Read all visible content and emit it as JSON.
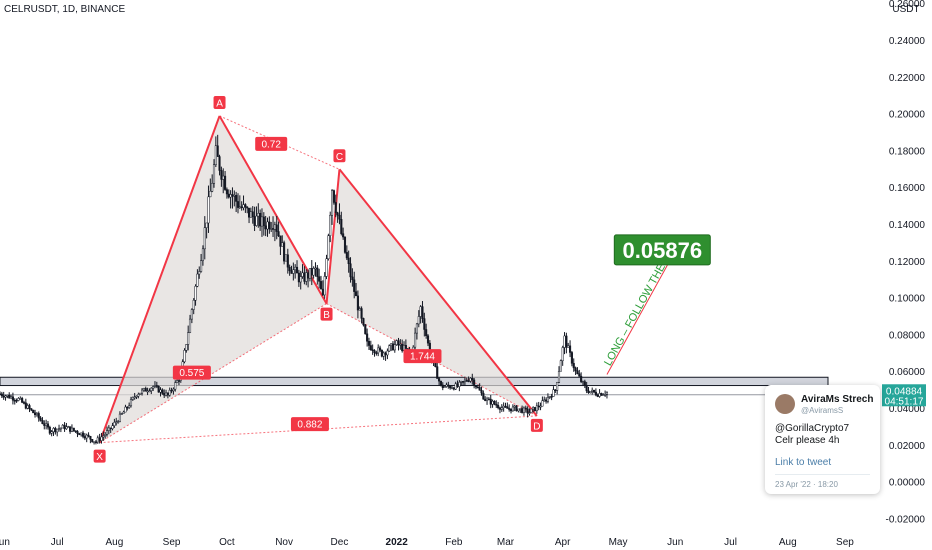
{
  "symbol_label": "CELRUSDT, 1D, BINANCE",
  "chart_data": {
    "type": "candlestick-pattern",
    "currency_label": "USDT",
    "y_ticks": [
      0.26,
      0.24,
      0.22,
      0.2,
      0.18,
      0.16,
      0.14,
      0.12,
      0.1,
      0.08,
      0.06,
      0.04,
      0.02,
      0.0,
      -0.02
    ],
    "y_tick_labels": [
      "0.26000",
      "0.24000",
      "0.22000",
      "0.20000",
      "0.18000",
      "0.16000",
      "0.14000",
      "0.12000",
      "0.10000",
      "0.08000",
      "0.06000",
      "0.04000",
      "0.02000",
      "0.00000",
      "-0.02000"
    ],
    "ylim": [
      -0.026,
      0.262
    ],
    "xlim": [
      "2021-05-31",
      "2022-09-20"
    ],
    "x_ticks": [
      {
        "label": "Jun",
        "date": "2021-06-01",
        "bold": false
      },
      {
        "label": "Jul",
        "date": "2021-07-01",
        "bold": false
      },
      {
        "label": "Aug",
        "date": "2021-08-01",
        "bold": false
      },
      {
        "label": "Sep",
        "date": "2021-09-01",
        "bold": false
      },
      {
        "label": "Oct",
        "date": "2021-10-01",
        "bold": false
      },
      {
        "label": "Nov",
        "date": "2021-11-01",
        "bold": false
      },
      {
        "label": "Dec",
        "date": "2021-12-01",
        "bold": false
      },
      {
        "label": "2022",
        "date": "2022-01-01",
        "bold": true
      },
      {
        "label": "Feb",
        "date": "2022-02-01",
        "bold": false
      },
      {
        "label": "Mar",
        "date": "2022-03-01",
        "bold": false
      },
      {
        "label": "Apr",
        "date": "2022-04-01",
        "bold": false
      },
      {
        "label": "May",
        "date": "2022-05-01",
        "bold": false
      },
      {
        "label": "Jun",
        "date": "2022-06-01",
        "bold": false
      },
      {
        "label": "Jul",
        "date": "2022-07-01",
        "bold": false
      },
      {
        "label": "Aug",
        "date": "2022-08-01",
        "bold": false
      },
      {
        "label": "Sep",
        "date": "2022-09-01",
        "bold": false
      }
    ],
    "price_path": [
      [
        "2021-05-31",
        0.048
      ],
      [
        "2021-06-10",
        0.045
      ],
      [
        "2021-06-20",
        0.036
      ],
      [
        "2021-06-27",
        0.028
      ],
      [
        "2021-07-05",
        0.03
      ],
      [
        "2021-07-15",
        0.026
      ],
      [
        "2021-07-22",
        0.022
      ],
      [
        "2021-07-29",
        0.028
      ],
      [
        "2021-08-06",
        0.038
      ],
      [
        "2021-08-13",
        0.048
      ],
      [
        "2021-08-22",
        0.052
      ],
      [
        "2021-08-30",
        0.047
      ],
      [
        "2021-09-06",
        0.058
      ],
      [
        "2021-09-13",
        0.1
      ],
      [
        "2021-09-18",
        0.13
      ],
      [
        "2021-09-25",
        0.178
      ],
      [
        "2021-10-01",
        0.16
      ],
      [
        "2021-10-08",
        0.15
      ],
      [
        "2021-10-14",
        0.145
      ],
      [
        "2021-10-21",
        0.14
      ],
      [
        "2021-10-27",
        0.142
      ],
      [
        "2021-11-02",
        0.12
      ],
      [
        "2021-11-10",
        0.11
      ],
      [
        "2021-11-18",
        0.115
      ],
      [
        "2021-11-22",
        0.1
      ],
      [
        "2021-11-27",
        0.16
      ],
      [
        "2021-12-04",
        0.125
      ],
      [
        "2021-12-10",
        0.1
      ],
      [
        "2021-12-16",
        0.075
      ],
      [
        "2021-12-24",
        0.07
      ],
      [
        "2022-01-01",
        0.075
      ],
      [
        "2022-01-09",
        0.07
      ],
      [
        "2022-01-14",
        0.095
      ],
      [
        "2022-01-19",
        0.07
      ],
      [
        "2022-01-25",
        0.052
      ],
      [
        "2022-02-03",
        0.052
      ],
      [
        "2022-02-10",
        0.057
      ],
      [
        "2022-02-18",
        0.045
      ],
      [
        "2022-02-28",
        0.04
      ],
      [
        "2022-03-07",
        0.04
      ],
      [
        "2022-03-14",
        0.038
      ],
      [
        "2022-03-20",
        0.042
      ],
      [
        "2022-03-28",
        0.05
      ],
      [
        "2022-04-02",
        0.078
      ],
      [
        "2022-04-08",
        0.06
      ],
      [
        "2022-04-14",
        0.05
      ],
      [
        "2022-04-20",
        0.048
      ],
      [
        "2022-04-25",
        0.04884
      ]
    ],
    "harmonic_points": [
      {
        "label": "X",
        "date": "2021-07-24",
        "price": 0.0215
      },
      {
        "label": "A",
        "date": "2021-09-27",
        "price": 0.199
      },
      {
        "label": "B",
        "date": "2021-11-24",
        "price": 0.097
      },
      {
        "label": "C",
        "date": "2021-12-01",
        "price": 0.17
      },
      {
        "label": "D",
        "date": "2022-03-18",
        "price": 0.036
      }
    ],
    "ratio_labels": [
      {
        "label": "0.72",
        "date": "2021-10-25",
        "price": 0.1838
      },
      {
        "label": "0.575",
        "date": "2021-09-12",
        "price": 0.0595
      },
      {
        "label": "1.744",
        "date": "2022-01-15",
        "price": 0.0685
      },
      {
        "label": "0.882",
        "date": "2021-11-15",
        "price": 0.0315
      }
    ],
    "support_zone": [
      0.0525,
      0.057
    ],
    "level_line": 0.0475,
    "target": {
      "label": "0.05876",
      "date": "2022-05-25",
      "price": 0.1262
    },
    "projection": {
      "start": [
        "2022-04-25",
        0.0585
      ],
      "end": [
        "2022-05-30",
        0.122
      ]
    },
    "projection_text": "LONG – FOLLOW THE LINE",
    "current_price": "0.04884",
    "countdown": "04:51:17"
  },
  "tweet": {
    "name": "AviraMs Strech",
    "handle": "@AviramsS",
    "line1": "@GorillaCrypto7",
    "line2": "Celr please 4h",
    "link": "Link to tweet",
    "date": "23 Apr '22 · 18:20"
  },
  "colors": {
    "harmonic": "#f23645",
    "fill": "#e0dcd8",
    "candle": "#131722",
    "target_box": "#2f8f2f",
    "projection_text": "#2e9e3a",
    "price_badge": "#26a69a"
  }
}
